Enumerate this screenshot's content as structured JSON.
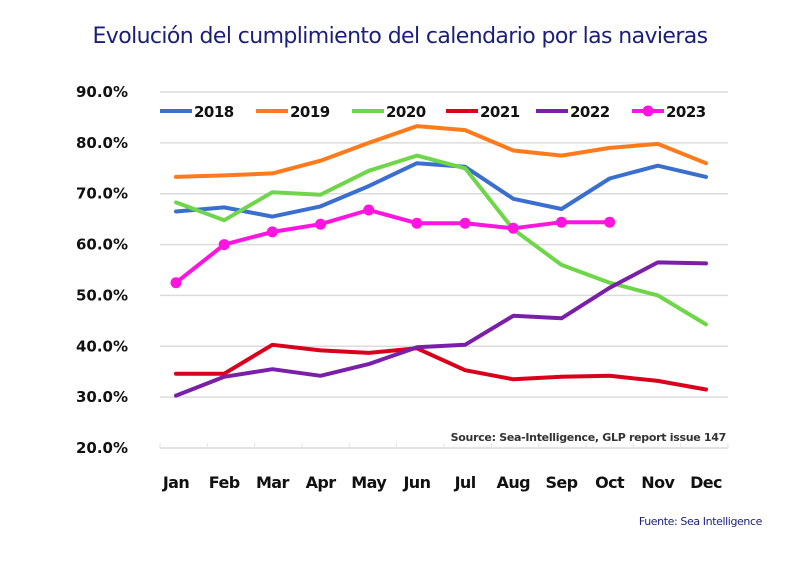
{
  "title": "Evolución del cumplimiento del calendario por las navieras",
  "footer_source": "Fuente: Sea Intelligence",
  "chart_data": {
    "type": "line",
    "title": "Evolución del cumplimiento del calendario por las navieras",
    "xlabel": "",
    "ylabel": "",
    "categories": [
      "Jan",
      "Feb",
      "Mar",
      "Apr",
      "May",
      "Jun",
      "Jul",
      "Aug",
      "Sep",
      "Oct",
      "Nov",
      "Dec"
    ],
    "ylim": [
      20,
      90
    ],
    "yticks": [
      20,
      30,
      40,
      50,
      60,
      70,
      80,
      90
    ],
    "ytick_labels": [
      "20.0%",
      "30.0%",
      "40.0%",
      "50.0%",
      "60.0%",
      "70.0%",
      "80.0%",
      "90.0%"
    ],
    "grid": true,
    "legend_position": "top",
    "annotation": "Source: Sea-Intelligence, GLP report issue 147",
    "series": [
      {
        "name": "2018",
        "color": "#3a6fcf",
        "markers": false,
        "values": [
          66.5,
          67.3,
          65.5,
          67.5,
          71.5,
          76.0,
          75.3,
          69.0,
          67.0,
          73.0,
          75.5,
          73.3
        ]
      },
      {
        "name": "2019",
        "color": "#ff7a1a",
        "markers": false,
        "values": [
          73.3,
          73.6,
          74.0,
          76.5,
          80.0,
          83.3,
          82.5,
          78.5,
          77.5,
          79.0,
          79.8,
          76.0
        ]
      },
      {
        "name": "2020",
        "color": "#6fd64a",
        "markers": false,
        "values": [
          68.3,
          64.8,
          70.3,
          69.8,
          74.5,
          77.5,
          75.0,
          63.0,
          56.0,
          52.5,
          50.0,
          44.3
        ]
      },
      {
        "name": "2021",
        "color": "#d9001b",
        "markers": false,
        "values": [
          34.6,
          34.6,
          40.3,
          39.2,
          38.7,
          39.6,
          35.3,
          33.5,
          34.0,
          34.2,
          33.2,
          31.5
        ]
      },
      {
        "name": "2022",
        "color": "#7a1fa8",
        "markers": false,
        "values": [
          30.3,
          34.0,
          35.5,
          34.2,
          36.5,
          39.8,
          40.3,
          46.0,
          45.5,
          51.5,
          56.5,
          56.3
        ]
      },
      {
        "name": "2023",
        "color": "#ff14e0",
        "markers": true,
        "values": [
          52.5,
          60.0,
          62.5,
          64.0,
          66.8,
          64.2,
          64.2,
          63.2,
          64.4,
          64.4
        ]
      }
    ]
  }
}
